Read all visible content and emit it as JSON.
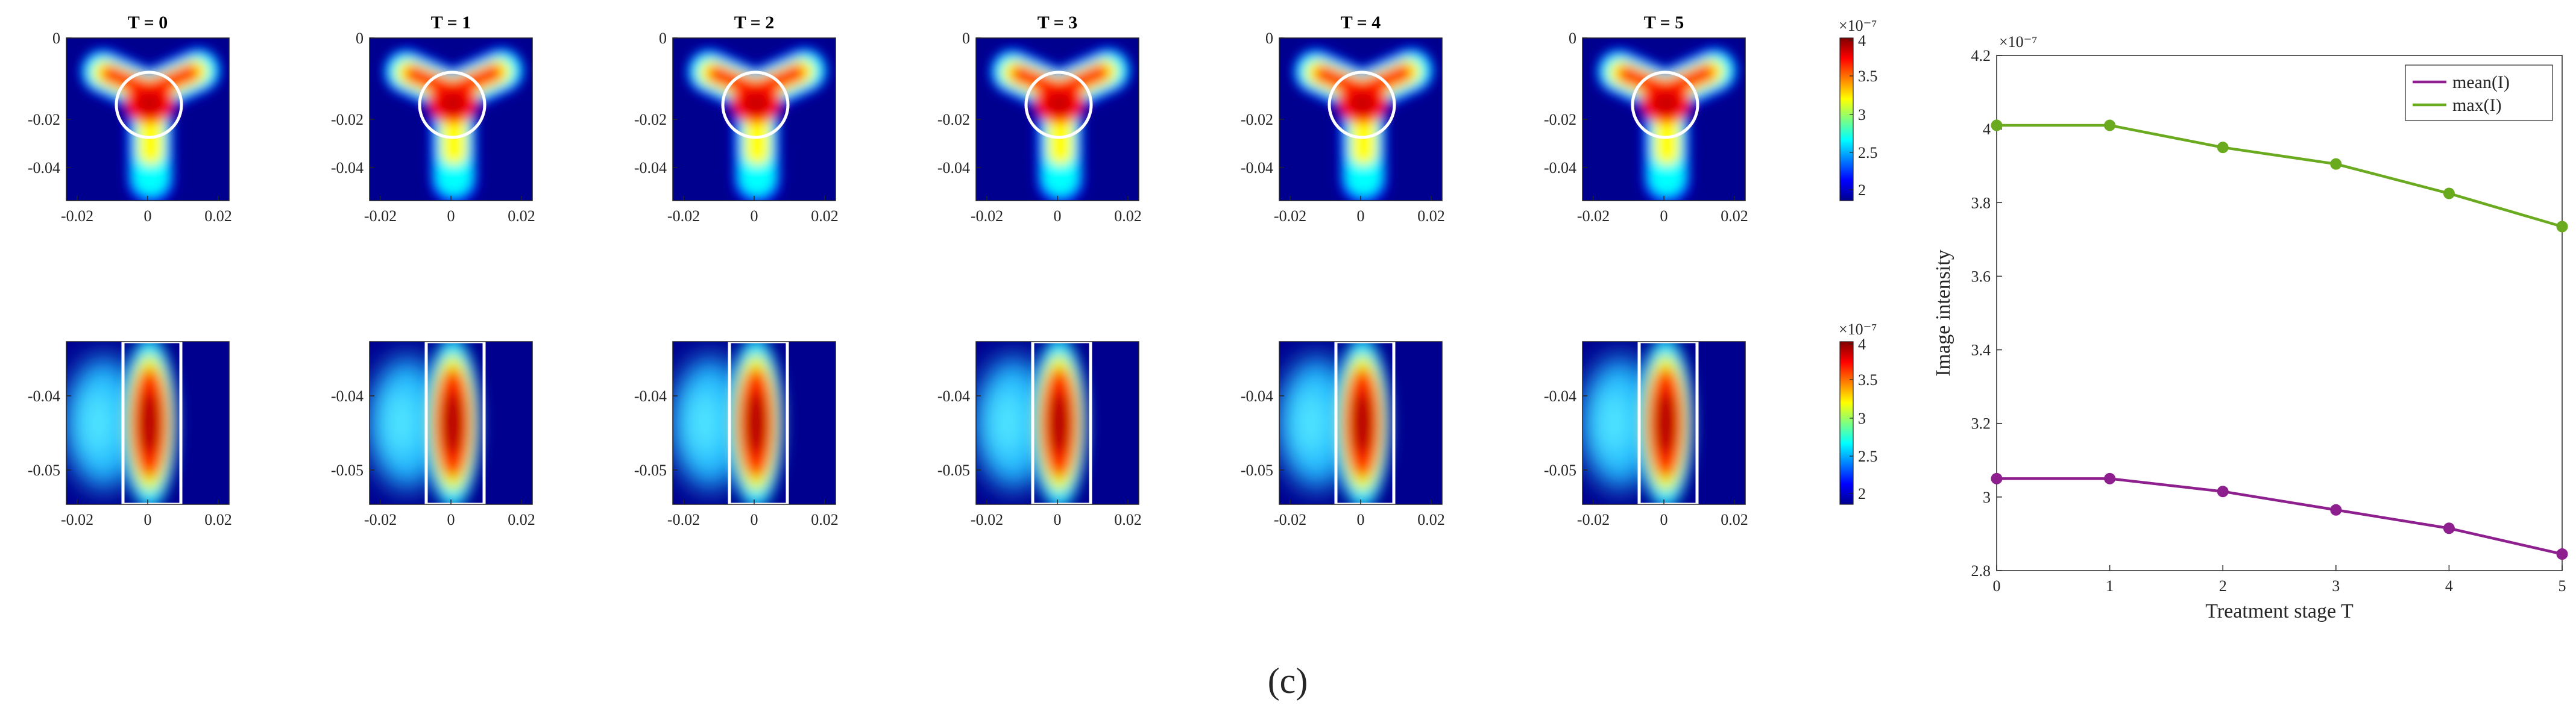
{
  "caption": "(c)",
  "colors": {
    "mean_series": "#8E1F8E",
    "max_series": "#6AAA1F",
    "circle_overlay": "#ffffff",
    "frame_overlay": "#ffffff"
  },
  "heatmaps": {
    "stages": [
      "T = 0",
      "T = 1",
      "T = 2",
      "T = 3",
      "T = 4",
      "T = 5"
    ],
    "top_row": {
      "x_ticks": [
        "-0.02",
        "0",
        "0.02"
      ],
      "y_ticks": [
        "0",
        "-0.02",
        "-0.04"
      ]
    },
    "bottom_row": {
      "x_ticks": [
        "-0.02",
        "0",
        "0.02"
      ],
      "y_ticks": [
        "-0.04",
        "-0.05"
      ]
    },
    "colorbar": {
      "exponent": "×10⁻⁷",
      "ticks": [
        "4",
        "3.5",
        "3",
        "2.5",
        "2"
      ],
      "colormap": "jet"
    }
  },
  "chart_data": {
    "type": "line",
    "title": "",
    "xlabel": "Treatment stage T",
    "ylabel": "Image intensity",
    "y_exponent": "×10⁻⁷",
    "x": [
      0,
      1,
      2,
      3,
      4,
      5
    ],
    "xlim": [
      0,
      5
    ],
    "ylim": [
      2.8,
      4.2
    ],
    "x_ticks": [
      "0",
      "1",
      "2",
      "3",
      "4",
      "5"
    ],
    "y_ticks": [
      "2.8",
      "3",
      "3.2",
      "3.4",
      "3.6",
      "3.8",
      "4",
      "4.2"
    ],
    "grid": false,
    "legend_position": "top-right",
    "series": [
      {
        "name": "mean(I)",
        "values": [
          3.05,
          3.05,
          3.015,
          2.965,
          2.915,
          2.845
        ]
      },
      {
        "name": "max(I)",
        "values": [
          4.01,
          4.01,
          3.95,
          3.905,
          3.825,
          3.735
        ]
      }
    ]
  }
}
